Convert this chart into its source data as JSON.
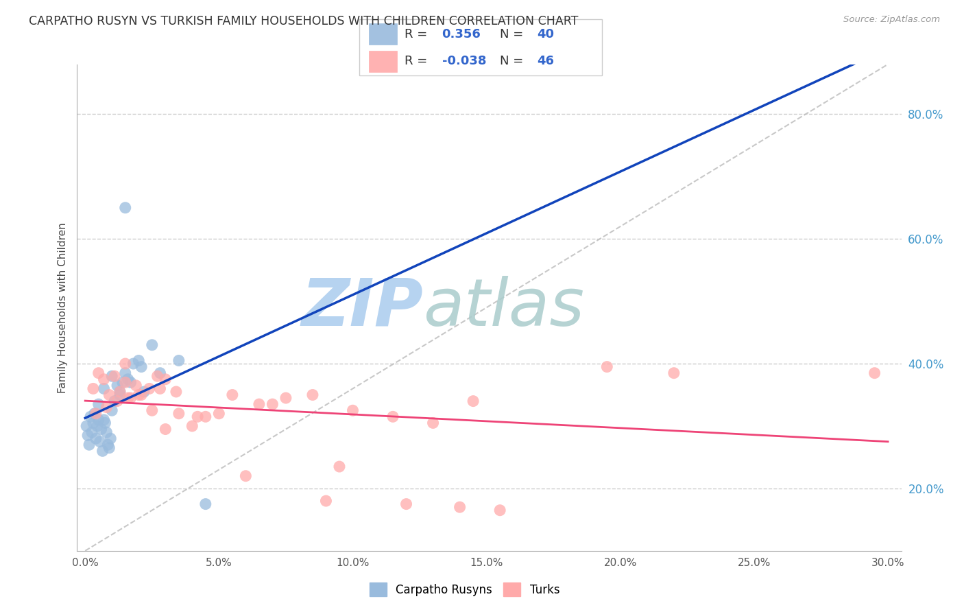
{
  "title": "CARPATHO RUSYN VS TURKISH FAMILY HOUSEHOLDS WITH CHILDREN CORRELATION CHART",
  "source": "Source: ZipAtlas.com",
  "ylabel": "Family Households with Children",
  "xtick_labels": [
    "0.0%",
    "5.0%",
    "10.0%",
    "15.0%",
    "20.0%",
    "25.0%",
    "30.0%"
  ],
  "xtick_values": [
    0.0,
    5.0,
    10.0,
    15.0,
    20.0,
    25.0,
    30.0
  ],
  "ytick_right_labels": [
    "20.0%",
    "40.0%",
    "60.0%",
    "80.0%"
  ],
  "ytick_right_values": [
    20.0,
    40.0,
    60.0,
    80.0
  ],
  "xlim": [
    -0.3,
    30.5
  ],
  "ylim": [
    10.0,
    88.0
  ],
  "legend_label1": "Carpatho Rusyns",
  "legend_label2": "Turks",
  "legend_R1": "0.356",
  "legend_N1": "40",
  "legend_R2": "-0.038",
  "legend_N2": "46",
  "color_blue_scatter": "#99BBDD",
  "color_pink_scatter": "#FFAAAA",
  "color_blue_line": "#1144BB",
  "color_pink_line": "#EE4477",
  "color_diag_line": "#BBBBBB",
  "watermark_zip": "#AACCEE",
  "watermark_atlas": "#AACCCC",
  "blue_x": [
    0.05,
    0.1,
    0.15,
    0.2,
    0.25,
    0.3,
    0.35,
    0.4,
    0.45,
    0.5,
    0.55,
    0.6,
    0.65,
    0.7,
    0.75,
    0.8,
    0.85,
    0.9,
    0.95,
    1.0,
    1.1,
    1.2,
    1.3,
    1.4,
    1.5,
    1.6,
    1.8,
    2.0,
    2.2,
    2.5,
    0.5,
    0.7,
    1.0,
    1.3,
    1.7,
    2.1,
    2.8,
    3.5,
    1.5,
    4.5
  ],
  "blue_y": [
    30.0,
    28.5,
    27.0,
    31.5,
    29.0,
    30.5,
    32.0,
    28.0,
    30.0,
    31.0,
    27.5,
    29.5,
    26.0,
    31.0,
    30.5,
    29.0,
    27.0,
    26.5,
    28.0,
    32.5,
    34.0,
    36.5,
    35.5,
    37.0,
    38.5,
    37.5,
    40.0,
    40.5,
    35.5,
    43.0,
    33.5,
    36.0,
    38.0,
    35.0,
    37.0,
    39.5,
    38.5,
    40.5,
    65.0,
    17.5
  ],
  "pink_x": [
    0.3,
    0.5,
    0.7,
    0.9,
    1.1,
    1.3,
    1.5,
    1.7,
    1.9,
    2.1,
    2.4,
    2.7,
    3.0,
    3.4,
    0.4,
    0.8,
    1.2,
    1.6,
    2.0,
    2.5,
    3.5,
    4.5,
    5.5,
    6.5,
    7.5,
    8.5,
    10.0,
    11.5,
    13.0,
    14.5,
    3.0,
    4.0,
    5.0,
    7.0,
    9.5,
    12.0,
    15.5,
    19.5,
    22.0,
    1.5,
    2.8,
    4.2,
    6.0,
    9.0,
    14.0,
    29.5
  ],
  "pink_y": [
    36.0,
    38.5,
    37.5,
    35.0,
    38.0,
    35.5,
    37.0,
    34.5,
    36.5,
    35.0,
    36.0,
    38.0,
    37.5,
    35.5,
    32.0,
    33.0,
    34.0,
    34.5,
    35.0,
    32.5,
    32.0,
    31.5,
    35.0,
    33.5,
    34.5,
    35.0,
    32.5,
    31.5,
    30.5,
    34.0,
    29.5,
    30.0,
    32.0,
    33.5,
    23.5,
    17.5,
    16.5,
    39.5,
    38.5,
    40.0,
    36.0,
    31.5,
    22.0,
    18.0,
    17.0,
    38.5
  ]
}
